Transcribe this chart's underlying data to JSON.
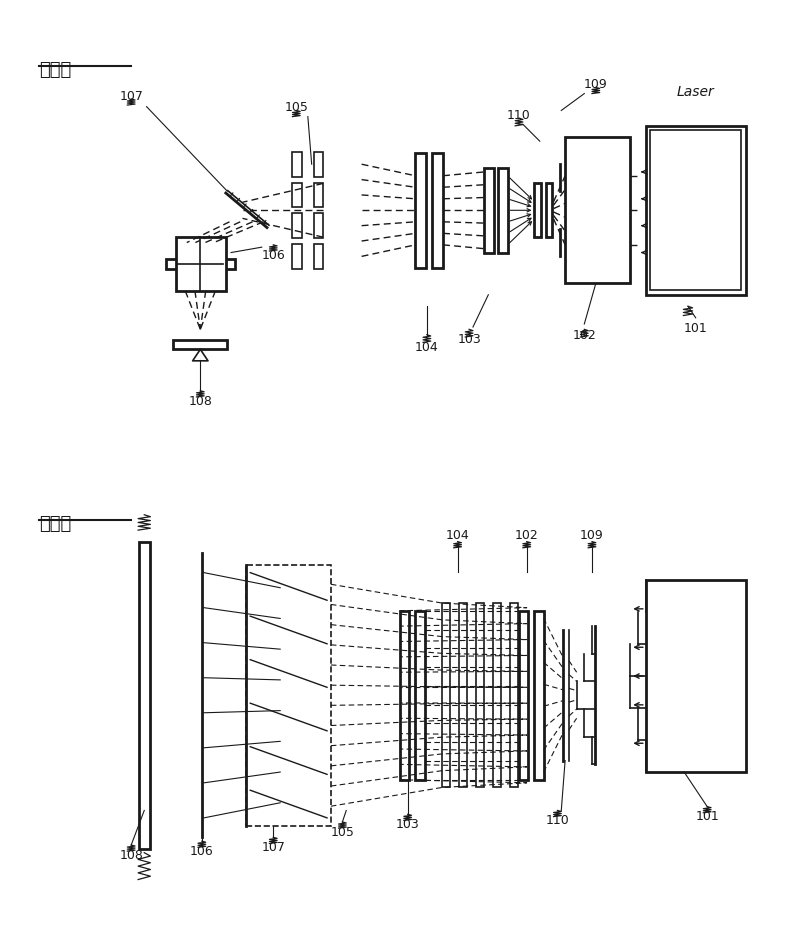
{
  "title_side": "侧视图",
  "title_top": "顶视图",
  "bg_color": "#ffffff",
  "line_color": "#1a1a1a",
  "lw": 1.2,
  "lw_thick": 2.0
}
